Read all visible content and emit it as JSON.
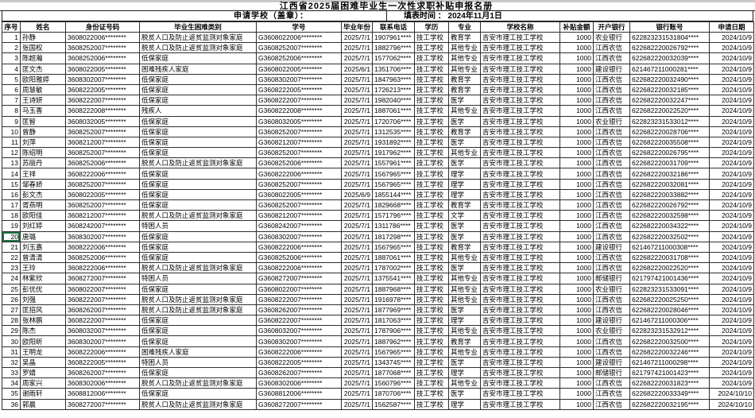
{
  "colors": {
    "selection_green": "#1f7245",
    "top_strip": "#c9c9c9"
  },
  "header": {
    "title": "江西省2025届困难毕业生一次性求职补贴申报名册",
    "school_label": "申请学校（盖章）：",
    "date_label": "填表时间 ： 2024年11月1日"
  },
  "table": {
    "columns": [
      "序号",
      "姓名",
      "身份证号码",
      "毕业生困难类别",
      "学号",
      "毕业年份",
      "联系电话",
      "学历",
      "专业",
      "学校名称",
      "补贴金额",
      "开户银行",
      "银行账号",
      "申请日期"
    ],
    "selection": {
      "row_no": "20",
      "column_no": "1"
    },
    "rows": [
      [
        "1",
        "孙静",
        "3608022006********",
        "脱贫人口及防止返贫监测对象家庭",
        "G3608022006********",
        "2025/7/1",
        "1907961****",
        "技工学校",
        "教育学",
        "吉安市理工技工学校",
        "1000",
        "农业银行",
        "622823231531804****",
        "2024/10/9"
      ],
      [
        "2",
        "张国权",
        "3608252007********",
        "脱贫人口及防止返贫监测对象家庭",
        "G3608252007********",
        "2025/7/1",
        "1882796****",
        "技工学校",
        "其他专业",
        "吉安市理工技工学校",
        "1000",
        "江西农信",
        "622682220026792****",
        "2024/10/9"
      ],
      [
        "3",
        "陈超瀚",
        "3608252006********",
        "低保家庭",
        "G3608252006********",
        "2025/7/1",
        "1577062****",
        "技工学校",
        "其他专业",
        "吉安市理工技工学校",
        "1000",
        "江西农信",
        "622682220032039****",
        "2024/10/9"
      ],
      [
        "4",
        "匡文杰",
        "3608022005********",
        "困难残疾人家庭",
        "G3608022005********",
        "2025/6/1",
        "1351706****",
        "技工学校",
        "其他专业",
        "吉安市理工技工学校",
        "1000",
        "建设银行",
        "621467211000281****",
        "2024/10/9"
      ],
      [
        "5",
        "欧阳雅婷",
        "3608302007********",
        "低保家庭",
        "G3608302007********",
        "2025/7/1",
        "1847963****",
        "技工学校",
        "教育学",
        "吉安市理工技工学校",
        "1000",
        "江西农信",
        "622682220032490****",
        "2024/10/9"
      ],
      [
        "6",
        "周慧敏",
        "3608222005********",
        "低保家庭",
        "G3608222005********",
        "2025/7/1",
        "1726213****",
        "技工学校",
        "教育学",
        "吉安市理工技工学校",
        "1000",
        "江西农信",
        "622682220032185****",
        "2024/10/9"
      ],
      [
        "7",
        "王诗妍",
        "3608222007********",
        "低保家庭",
        "G3608222007********",
        "2025/7/1",
        "1982040****",
        "技工学校",
        "医学",
        "吉安市理工技工学校",
        "1000",
        "江西农信",
        "622682220032247****",
        "2024/10/9"
      ],
      [
        "8",
        "马玉香",
        "3608222008********",
        "残疾人",
        "G3608222008********",
        "2025/7/1",
        "1887061****",
        "技工学校",
        "其他专业",
        "吉安市理工技工学校",
        "1000",
        "江西农信",
        "622682220022520****",
        "2024/10/9"
      ],
      [
        "9",
        "匡智",
        "3608032005********",
        "低保家庭",
        "G3608032005********",
        "2025/7/1",
        "1720706****",
        "技工学校",
        "医学",
        "吉安市理工技工学校",
        "1000",
        "农业银行",
        "622823231533012****",
        "2024/10/9"
      ],
      [
        "10",
        "曾静",
        "3608252007********",
        "低保家庭",
        "G3608252007********",
        "2025/7/1",
        "1312535****",
        "技工学校",
        "教育学",
        "吉安市理工技工学校",
        "1000",
        "江西农信",
        "622682220028706****",
        "2024/10/9"
      ],
      [
        "11",
        "刘萍",
        "3608212007********",
        "低保家庭",
        "G3608212007********",
        "2025/7/1",
        "1931892****",
        "技工学校",
        "医学",
        "吉安市理工技工学校",
        "1000",
        "江西农信",
        "622682220035508****",
        "2024/10/9"
      ],
      [
        "12",
        "陈绍明",
        "3608252007********",
        "低保家庭",
        "G3608252007********",
        "2025/7/1",
        "1917962****",
        "技工学校",
        "其他专业",
        "吉安市理工技工学校",
        "1000",
        "江西农信",
        "622682220026795****",
        "2024/10/9"
      ],
      [
        "13",
        "苏丽丹",
        "3608252006********",
        "脱贫人口及防止返贫监测对象家庭",
        "G3608252006********",
        "2025/7/1",
        "1557961****",
        "技工学校",
        "医学",
        "吉安市理工技工学校",
        "1000",
        "江西农信",
        "622682220031709****",
        "2024/10/9"
      ],
      [
        "14",
        "王祥",
        "3608222006********",
        "低保家庭",
        "G3608222006********",
        "2025/7/1",
        "1567965****",
        "技工学校",
        "理学",
        "吉安市理工技工学校",
        "1000",
        "江西农信",
        "622682220032186****",
        "2024/10/9"
      ],
      [
        "15",
        "邹春娇",
        "3608252007********",
        "低保家庭",
        "G3608252007********",
        "2025/7/1",
        "1567965****",
        "技工学校",
        "理学",
        "吉安市理工技工学校",
        "1000",
        "江西农信",
        "622682220032081****",
        "2024/10/9"
      ],
      [
        "16",
        "彭文杰",
        "3608022005********",
        "低保家庭",
        "G3608022005********",
        "2025/6/9",
        "1855144****",
        "技工学校",
        "理学",
        "吉安市理工技工学校",
        "1000",
        "江西农信",
        "622682220033882****",
        "2024/10/9"
      ],
      [
        "17",
        "胥燕明",
        "3608252007********",
        "低保家庭",
        "G3608252007********",
        "2025/7/1",
        "1829668****",
        "技工学校",
        "教育学",
        "吉安市理工技工学校",
        "1000",
        "江西农信",
        "622682220026792****",
        "2024/10/9"
      ],
      [
        "18",
        "欧阳佳",
        "3608212007********",
        "脱贫人口及防止返贫监测对象家庭",
        "G3608212007********",
        "2025/7/1",
        "1571796****",
        "技工学校",
        "文学",
        "吉安市理工技工学校",
        "1000",
        "江西农信",
        "622682220032598****",
        "2024/10/9"
      ],
      [
        "19",
        "刘红婷",
        "3608242007********",
        "特困人员",
        "G3608242007********",
        "2025/7/1",
        "1311786****",
        "技工学校",
        "医学",
        "吉安市理工技工学校",
        "1000",
        "江西农信",
        "622682220034322****",
        "2024/10/9"
      ],
      [
        "20",
        "唐璐",
        "3608302007********",
        "低保家庭",
        "G3608302007********",
        "2025/7/1",
        "1817298****",
        "技工学校",
        "医学",
        "吉安市理工技工学校",
        "1000",
        "江西农信",
        "622682220032502****",
        "2024/10/9"
      ],
      [
        "21",
        "刘玉嘉",
        "3608222006********",
        "低保家庭",
        "G3608222006********",
        "2025/7/1",
        "1567965****",
        "技工学校",
        "教育学",
        "吉安市理工技工学校",
        "1000",
        "建设银行",
        "621467211000308****",
        "2024/10/9"
      ],
      [
        "22",
        "曾清清",
        "3608252006********",
        "低保家庭",
        "G3608252006********",
        "2025/7/1",
        "1887061****",
        "技工学校",
        "其他专业",
        "吉安市理工技工学校",
        "1000",
        "江西农信",
        "622682220031708****",
        "2024/10/9"
      ],
      [
        "23",
        "王玲",
        "3608222006********",
        "脱贫人口及防止返贫监测对象家庭",
        "G3608222006********",
        "2025/7/1",
        "1787002****",
        "技工学校",
        "医学",
        "吉安市理工技工学校",
        "1000",
        "江西农信",
        "622682220022520****",
        "2024/10/9"
      ],
      [
        "24",
        "林紫欣",
        "3608272007********",
        "特困人员",
        "G3608272007********",
        "2025/7/1",
        "1375541****",
        "技工学校",
        "其他专业",
        "吉安市理工技工学校",
        "1000",
        "邮储银行",
        "621797421001436****",
        "2024/10/9"
      ],
      [
        "25",
        "彭优优",
        "3608022007********",
        "低保家庭",
        "G3608022007********",
        "2025/7/1",
        "1887968****",
        "技工学校",
        "其他专业",
        "吉安市理工技工学校",
        "1000",
        "农业银行",
        "622823231533091****",
        "2024/10/9"
      ],
      [
        "26",
        "刘强",
        "3608222007********",
        "脱贫人口及防止返贫监测对象家庭",
        "G3608222007********",
        "2025/7/1",
        "1916978****",
        "技工学校",
        "其他专业",
        "吉安市理工技工学校",
        "1000",
        "江西农信",
        "622682220025250****",
        "2024/10/9"
      ],
      [
        "27",
        "匡招风",
        "3608262007********",
        "脱贫人口及防止返贫监测对象家庭",
        "G3608262007********",
        "2025/7/1",
        "1877969****",
        "技工学校",
        "医学",
        "吉安市理工技工学校",
        "1000",
        "江西农信",
        "622682220028046****",
        "2024/10/9"
      ],
      [
        "28",
        "张林鹏",
        "3608222007********",
        "低保家庭",
        "G3608222007********",
        "2025/7/1",
        "1817063****",
        "技工学校",
        "理学",
        "吉安市理工技工学校",
        "1000",
        "建设银行",
        "621467211000306****",
        "2024/10/9"
      ],
      [
        "29",
        "陈杰",
        "3608032007********",
        "低保家庭",
        "G3608032007********",
        "2025/7/1",
        "1787906****",
        "技工学校",
        "其他专业",
        "吉安市理工技工学校",
        "1000",
        "农业银行",
        "622823231532912****",
        "2024/10/9"
      ],
      [
        "30",
        "欧阳昕",
        "3608302007********",
        "低保家庭",
        "G3608302007********",
        "2025/7/1",
        "1887962****",
        "技工学校",
        "教育学",
        "吉安市理工技工学校",
        "1000",
        "江西农信",
        "622682220032500****",
        "2024/10/9"
      ],
      [
        "31",
        "王明龙",
        "3608222006********",
        "困难残疾人家庭",
        "G3608222006********",
        "2025/7/1",
        "1567965****",
        "技工学校",
        "其他专业",
        "吉安市理工技工学校",
        "1000",
        "江西农信",
        "622682220032246****",
        "2024/10/9"
      ],
      [
        "32",
        "吴晶",
        "3608222005********",
        "特困人员",
        "G3608222005********",
        "2025/7/1",
        "1343745****",
        "技工学校",
        "医学",
        "吉安市理工技工学校",
        "1000",
        "建设银行",
        "621467211000298****",
        "2024/10/9"
      ],
      [
        "33",
        "罗婧",
        "3608262007********",
        "低保家庭",
        "G3608262007********",
        "2025/7/1",
        "1877068****",
        "技工学校",
        "理学",
        "吉安市理工技工学校",
        "1000",
        "邮储银行",
        "621797421001423****",
        "2024/10/9"
      ],
      [
        "34",
        "周家兴",
        "3608302006********",
        "脱贫人口及防止返贫监测对象家庭",
        "G3608302006********",
        "2025/7/1",
        "1560796****",
        "技工学校",
        "其他专业",
        "吉安市理工技工学校",
        "1000",
        "江西农信",
        "622682220031823****",
        "2024/10/9"
      ],
      [
        "35",
        "谢雨轩",
        "3608812006********",
        "低保家庭",
        "G3608812006********",
        "2025/7/1",
        "1870706****",
        "技工学校",
        "医学",
        "吉安市理工技工学校",
        "1000",
        "江西农信",
        "622682220033349****",
        "2024/10/10"
      ],
      [
        "36",
        "郭晨",
        "3608272007********",
        "脱贫人口及防止返贫监测对象家庭",
        "G3608272007********",
        "2025/7/1",
        "1562587****",
        "技工学校",
        "理学",
        "吉安市理工技工学校",
        "1000",
        "江西农信",
        "622682220032195****",
        "2024/10/10"
      ]
    ]
  }
}
